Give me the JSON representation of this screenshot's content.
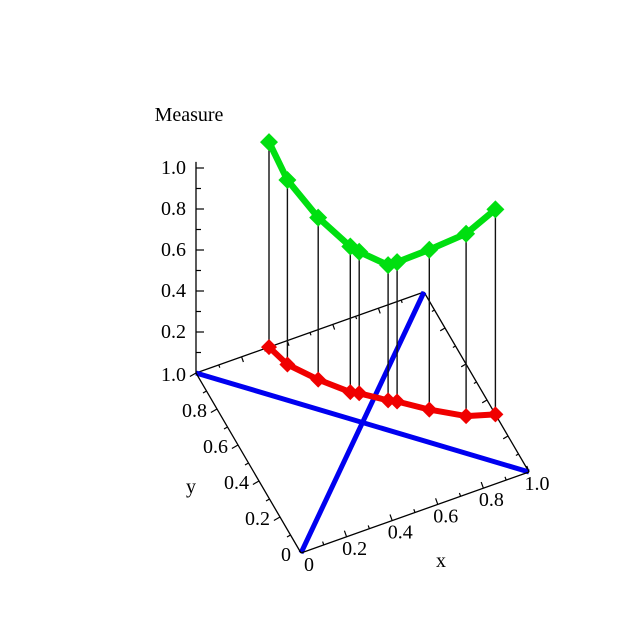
{
  "figure": {
    "background": "#ffffff"
  },
  "colors": {
    "measure_curve_green": "#00df10",
    "projection_curve_red": "#f00000",
    "diagonal_blue": "#0000f0",
    "axes_black": "#000000",
    "drop_line": "#111111",
    "background": "#ffffff"
  },
  "chart_data": {
    "type": "line",
    "projection": "3d",
    "title": "Measure",
    "xlabel": "x",
    "ylabel": "y",
    "zlabel": "Measure",
    "xlim": [
      0,
      1
    ],
    "ylim": [
      0,
      1
    ],
    "zlim": [
      0,
      1
    ],
    "grid": false,
    "legend": "none",
    "points": [
      {
        "x": 0.32,
        "y": 1.0,
        "measure": 1.0
      },
      {
        "x": 0.35,
        "y": 0.89,
        "measure": 0.9
      },
      {
        "x": 0.43,
        "y": 0.77,
        "measure": 0.79
      },
      {
        "x": 0.52,
        "y": 0.66,
        "measure": 0.71
      },
      {
        "x": 0.55,
        "y": 0.64,
        "measure": 0.69
      },
      {
        "x": 0.64,
        "y": 0.56,
        "measure": 0.66
      },
      {
        "x": 0.67,
        "y": 0.54,
        "measure": 0.68
      },
      {
        "x": 0.77,
        "y": 0.45,
        "measure": 0.78
      },
      {
        "x": 0.89,
        "y": 0.36,
        "measure": 0.89
      },
      {
        "x": 1.0,
        "y": 0.32,
        "measure": 1.0
      }
    ],
    "series": [
      {
        "name": "measure-curve",
        "color": "#00df10",
        "marker": "diamond",
        "z": "measure"
      },
      {
        "name": "base-projection-curve",
        "color": "#f00000",
        "marker": "diamond",
        "z": 0
      }
    ],
    "diagonals": [
      {
        "name": "base-diagonal-0-0-to-1-1",
        "from": [
          0,
          0
        ],
        "to": [
          1,
          1
        ],
        "color": "#0000f0"
      },
      {
        "name": "base-diagonal-0-1-to-1-0",
        "from": [
          0,
          1
        ],
        "to": [
          1,
          0
        ],
        "color": "#0000f0"
      }
    ],
    "drop_lines": true,
    "x_ticks": [
      {
        "v": 0.0,
        "label": "0"
      },
      {
        "v": 0.2,
        "label": "0.2"
      },
      {
        "v": 0.4,
        "label": "0.4"
      },
      {
        "v": 0.6,
        "label": "0.6"
      },
      {
        "v": 0.8,
        "label": "0.8"
      },
      {
        "v": 1.0,
        "label": "1.0"
      }
    ],
    "y_ticks": [
      {
        "v": 0.0,
        "label": "0"
      },
      {
        "v": 0.2,
        "label": "0.2"
      },
      {
        "v": 0.4,
        "label": "0.4"
      },
      {
        "v": 0.6,
        "label": "0.6"
      },
      {
        "v": 0.8,
        "label": "0.8"
      },
      {
        "v": 1.0,
        "label": "1.0"
      }
    ],
    "z_ticks": [
      {
        "v": 0.2,
        "label": "0.2"
      },
      {
        "v": 0.4,
        "label": "0.4"
      },
      {
        "v": 0.6,
        "label": "0.6"
      },
      {
        "v": 0.8,
        "label": "0.8"
      },
      {
        "v": 1.0,
        "label": "1.0"
      }
    ],
    "minor_tick_step": 0.1
  }
}
